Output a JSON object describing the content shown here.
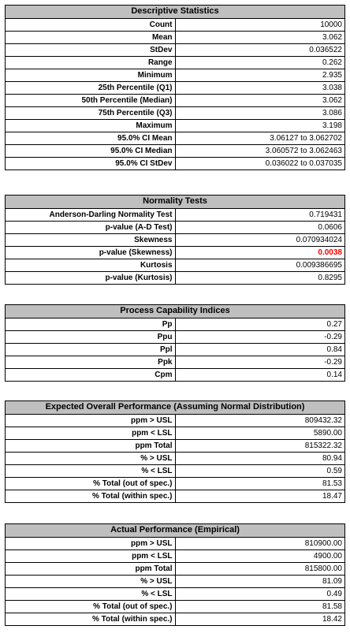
{
  "descriptive": {
    "title": "Descriptive Statistics",
    "rows": [
      {
        "label": "Count",
        "value": "10000"
      },
      {
        "label": "Mean",
        "value": "3.062"
      },
      {
        "label": "StDev",
        "value": "0.036522"
      },
      {
        "label": "Range",
        "value": "0.262"
      },
      {
        "label": "Minimum",
        "value": "2.935"
      },
      {
        "label": "25th Percentile (Q1)",
        "value": "3.038"
      },
      {
        "label": "50th Percentile (Median)",
        "value": "3.062"
      },
      {
        "label": "75th Percentile (Q3)",
        "value": "3.086"
      },
      {
        "label": "Maximum",
        "value": "3.198"
      },
      {
        "label": "95.0% CI Mean",
        "value": "3.06127 to 3.062702"
      },
      {
        "label": "95.0% CI Median",
        "value": "3.060572 to 3.062463"
      },
      {
        "label": "95.0% CI StDev",
        "value": "0.036022 to 0.037035"
      }
    ]
  },
  "normality": {
    "title": "Normality Tests",
    "rows": [
      {
        "label": "Anderson-Darling Normality Test",
        "value": "0.719431"
      },
      {
        "label": "p-value (A-D Test)",
        "value": "0.0606"
      },
      {
        "label": "Skewness",
        "value": "0.070934024"
      },
      {
        "label": "p-value (Skewness)",
        "value": "0.0038"
      },
      {
        "label": "Kurtosis",
        "value": "0.009386695"
      },
      {
        "label": "p-value (Kurtosis)",
        "value": "0.8295"
      }
    ],
    "highlight_color": "#ff0000"
  },
  "capability": {
    "title": "Process Capability Indices",
    "rows": [
      {
        "label": "Pp",
        "value": "0.27"
      },
      {
        "label": "Ppu",
        "value": "-0.29"
      },
      {
        "label": "Ppl",
        "value": "0.84"
      },
      {
        "label": "Ppk",
        "value": "-0.29"
      },
      {
        "label": "Cpm",
        "value": "0.14"
      }
    ]
  },
  "expected": {
    "title": "Expected Overall Performance (Assuming Normal Distribution)",
    "rows": [
      {
        "label": "ppm > USL",
        "value": "809432.32"
      },
      {
        "label": "ppm < LSL",
        "value": "5890.00"
      },
      {
        "label": "ppm Total",
        "value": "815322.32"
      },
      {
        "label": "% > USL",
        "value": "80.94"
      },
      {
        "label": "% < LSL",
        "value": "0.59"
      },
      {
        "label": "% Total (out of spec.)",
        "value": "81.53"
      },
      {
        "label": "% Total  (within spec.)",
        "value": "18.47"
      }
    ]
  },
  "actual": {
    "title": "Actual Performance (Empirical)",
    "rows": [
      {
        "label": "ppm > USL",
        "value": "810900.00"
      },
      {
        "label": "ppm < LSL",
        "value": "4900.00"
      },
      {
        "label": "ppm Total",
        "value": "815800.00"
      },
      {
        "label": "% > USL",
        "value": "81.09"
      },
      {
        "label": "% < LSL",
        "value": "0.49"
      },
      {
        "label": "% Total (out of spec.)",
        "value": "81.58"
      },
      {
        "label": "% Total (within spec.)",
        "value": "18.42"
      }
    ]
  },
  "colors": {
    "header_fill": "#bfbfbf",
    "highlight": "#ff0000"
  }
}
